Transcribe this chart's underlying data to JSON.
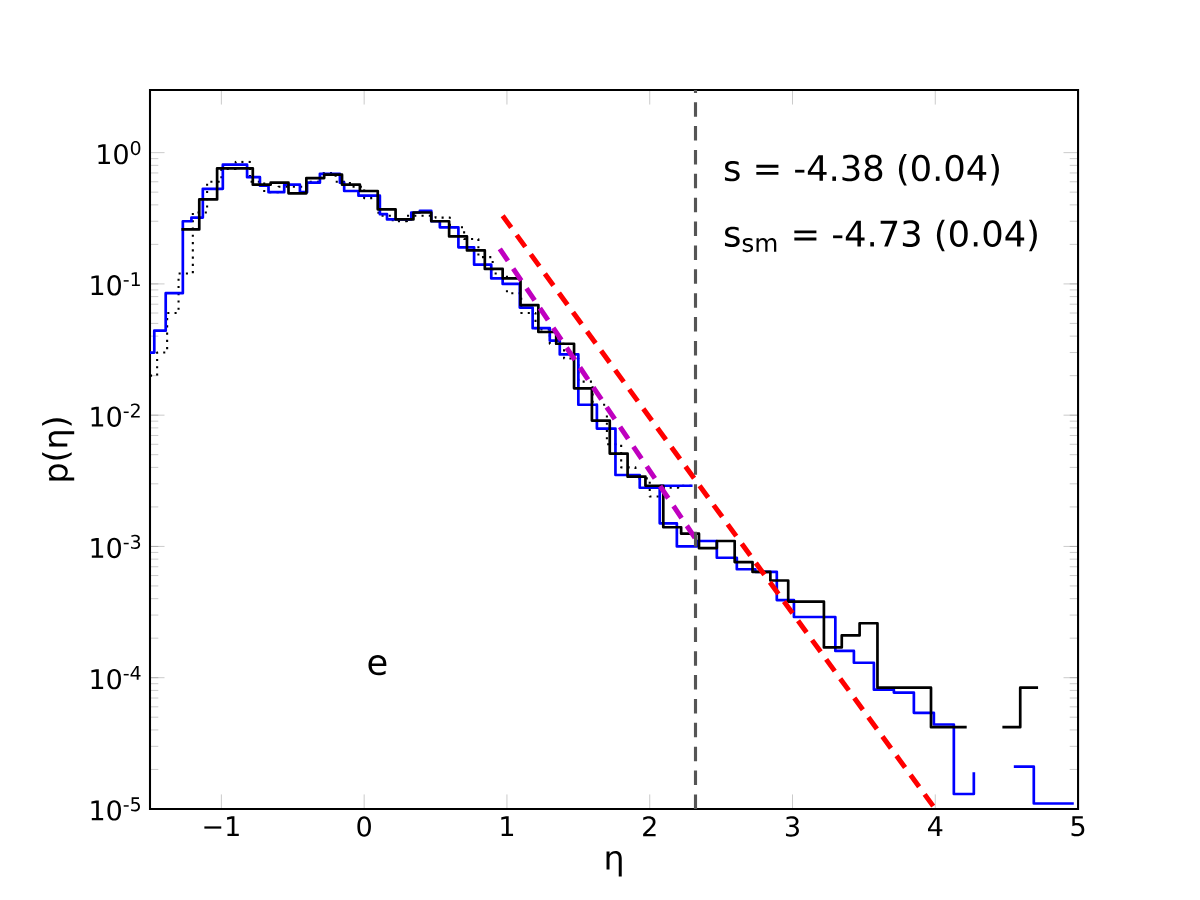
{
  "chart_data": {
    "type": "step",
    "xlabel": "η",
    "ylabel": "p(η)",
    "xlim": [
      -1.5,
      5
    ],
    "ylim": [
      1e-05,
      3
    ],
    "log": "y",
    "xticks": [
      {
        "value": -1,
        "label": "−1"
      },
      0,
      1,
      2,
      3,
      4,
      5
    ],
    "yticks": [
      {
        "value": 1e-05,
        "label": "10$^{-5}$"
      },
      {
        "value": 0.0001,
        "label": "10$^{-4}$"
      },
      {
        "value": 0.001,
        "label": "10$^{-3}$"
      },
      {
        "value": 0.01,
        "label": "10$^{-2}$"
      },
      {
        "value": 0.1,
        "label": "10$^{-1}$"
      },
      {
        "value": 1,
        "label": "10$^{0}$"
      }
    ],
    "grid": false,
    "series": [
      {
        "color": "#000000",
        "line_style": "dotted",
        "x": [
          -1.5,
          -1.45,
          -1.38,
          -1.3,
          -1.2,
          -1.1,
          -1.0,
          -0.9,
          -0.8,
          -0.7,
          -0.6,
          -0.5,
          -0.4,
          -0.3,
          -0.2,
          -0.1,
          0.0,
          0.1,
          0.2,
          0.3,
          0.4,
          0.5,
          0.6,
          0.7,
          0.8,
          0.9,
          1.0,
          1.1,
          1.2,
          1.3,
          1.4,
          1.5,
          1.6,
          1.7,
          1.8,
          1.9,
          2.0,
          2.1,
          2.2,
          2.3
        ],
        "values": [
          0.02,
          0.03,
          0.06,
          0.12,
          0.35,
          0.6,
          0.75,
          0.85,
          0.6,
          0.5,
          0.55,
          0.55,
          0.6,
          0.7,
          0.6,
          0.55,
          0.45,
          0.33,
          0.3,
          0.33,
          0.33,
          0.32,
          0.27,
          0.22,
          0.16,
          0.12,
          0.085,
          0.06,
          0.045,
          0.035,
          0.027,
          0.018,
          0.012,
          0.006,
          0.004,
          0.0033,
          0.0024,
          0.0028,
          0.0029,
          0.0029
        ]
      },
      {
        "color": "#0000ff",
        "line_style": "solid",
        "x": [
          2.07,
          2.3
        ],
        "values": [
          0.0029,
          0.0029
        ]
      },
      {
        "color": "#0000ff",
        "line_style": "solid",
        "x": [
          -1.5,
          -1.47,
          -1.39,
          -1.27,
          -1.21,
          -1.13,
          -0.99,
          -0.82,
          -0.73,
          -0.67,
          -0.56,
          -0.45,
          -0.4,
          -0.31,
          -0.17,
          -0.14,
          -0.04,
          0.11,
          0.16,
          0.33,
          0.39,
          0.47,
          0.53,
          0.66,
          0.77,
          0.89,
          0.97,
          1.09,
          1.18,
          1.3,
          1.37,
          1.5,
          1.63,
          1.76,
          1.93,
          2.07,
          2.19,
          2.33,
          2.47,
          2.61,
          2.74,
          2.89,
          3.01,
          3.3,
          3.43,
          3.57,
          3.71,
          3.85,
          3.99,
          4.13,
          4.27,
          4.41,
          4.55,
          4.69,
          4.97
        ],
        "values": [
          0.03,
          0.044,
          0.085,
          0.3,
          0.32,
          0.53,
          0.81,
          0.65,
          0.56,
          0.5,
          0.57,
          0.5,
          0.59,
          0.69,
          0.59,
          0.51,
          0.47,
          0.34,
          0.31,
          0.35,
          0.36,
          0.3,
          0.27,
          0.19,
          0.14,
          0.11,
          0.1,
          0.066,
          0.046,
          0.037,
          0.029,
          0.012,
          0.0079,
          0.0035,
          0.0028,
          0.0015,
          0.001,
          0.0011,
          0.00082,
          0.00067,
          0.00064,
          0.00039,
          0.00029,
          0.00016,
          0.00013,
          8.1e-05,
          7.7e-05,
          5.4e-05,
          4.4e-05,
          1.3e-05,
          1.9e-05,
          null,
          2.1e-05,
          1.1e-05,
          1.1e-05
        ]
      },
      {
        "color": "#000000",
        "line_style": "solid",
        "x": [
          -1.28,
          -1.155,
          -1.03,
          -0.905,
          -0.78,
          -0.655,
          -0.53,
          -0.405,
          -0.28,
          -0.155,
          -0.03,
          0.095,
          0.22,
          0.345,
          0.47,
          0.595,
          0.72,
          0.845,
          0.97,
          1.095,
          1.22,
          1.345,
          1.47,
          1.595,
          1.72,
          1.845,
          1.97,
          2.095,
          2.22,
          2.345,
          2.47,
          2.595,
          2.72,
          2.845,
          2.97,
          3.095,
          3.22,
          3.345,
          3.47,
          3.595,
          3.72,
          3.845,
          3.97,
          4.095,
          4.22,
          4.345,
          4.47,
          4.595,
          4.72
        ],
        "values": [
          0.26,
          0.44,
          0.76,
          0.76,
          0.57,
          0.59,
          0.49,
          0.64,
          0.68,
          0.57,
          0.51,
          0.37,
          0.31,
          0.35,
          0.3,
          0.23,
          0.18,
          0.13,
          0.11,
          0.069,
          0.043,
          0.035,
          0.016,
          0.0091,
          0.0051,
          0.0034,
          0.0029,
          0.0014,
          0.00125,
          0.00097,
          0.0011,
          0.00076,
          0.00064,
          0.00055,
          0.00038,
          0.00038,
          0.00017,
          0.00021,
          0.00026,
          8.4e-05,
          8.4e-05,
          8.4e-05,
          4.2e-05,
          4.2e-05,
          4.2e-05,
          null,
          4.2e-05,
          8.4e-05,
          8.4e-05
        ]
      },
      {
        "type": "line",
        "color": "#bf00bf",
        "line_style": "dashed",
        "x": [
          0.95,
          2.32
        ],
        "values": [
          0.185,
          0.00115
        ]
      },
      {
        "type": "line",
        "color": "#ff0000",
        "line_style": "dashed",
        "x": [
          0.97,
          4.0
        ],
        "values": [
          0.33,
          1e-05
        ]
      }
    ],
    "ref_lines": [
      {
        "axis": "x",
        "value": 2.32,
        "color": "#555555",
        "line_style": "dashed"
      }
    ],
    "annotations": [
      "s = -4.38 (0.04)",
      "s$_{sm}$ = -4.73 (0.04)",
      "e"
    ]
  }
}
